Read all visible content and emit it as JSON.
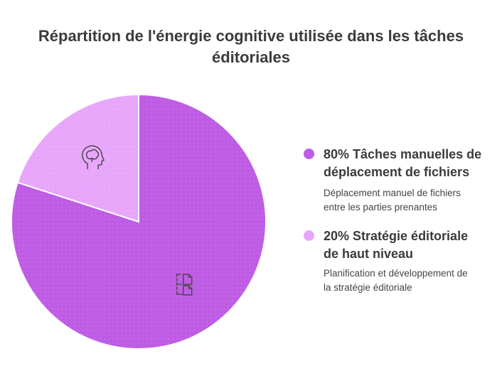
{
  "title_lines": [
    "Répartition de l'énergie cognitive utilisée dans les tâches",
    "éditoriales"
  ],
  "colors": {
    "slice_manual": "#be5ce4",
    "slice_strategy": "#e8a6fb",
    "icon_stroke": "#4a4a4a"
  },
  "legend": [
    {
      "label_lines": [
        "80% Tâches manuelles de",
        "déplacement de fichiers"
      ],
      "desc_lines": [
        "Déplacement manuel de fichiers",
        "entre les parties prenantes"
      ],
      "icon": "file-transfer-icon"
    },
    {
      "label_lines": [
        "20% Stratégie éditoriale",
        "de haut niveau"
      ],
      "desc_lines": [
        "Planification et développement de",
        "la stratégie éditoriale"
      ],
      "icon": "brain-head-icon"
    }
  ],
  "chart_data": {
    "type": "pie",
    "title": "Répartition de l'énergie cognitive utilisée dans les tâches éditoriales",
    "categories": [
      "Tâches manuelles de déplacement de fichiers",
      "Stratégie éditoriale de haut niveau"
    ],
    "values": [
      80,
      20
    ],
    "unit": "%",
    "start_angle": "12 o'clock, clockwise",
    "legend_position": "right"
  }
}
